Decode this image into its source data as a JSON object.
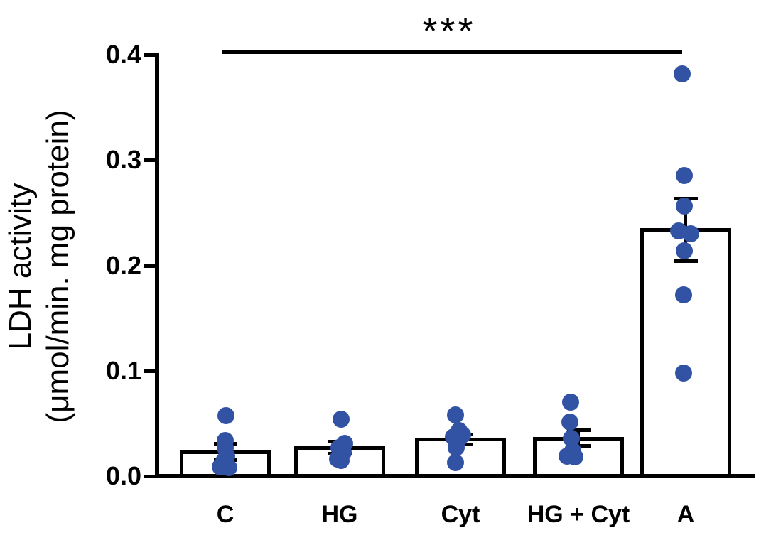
{
  "chart_data": {
    "type": "bar",
    "title": "",
    "ylabel_line1": "LDH activity",
    "ylabel_line2": "(μmol/min. mg protein)",
    "xlabel": "",
    "ylim": [
      0,
      0.4
    ],
    "yticks": [
      0.0,
      0.1,
      0.2,
      0.3,
      0.4
    ],
    "ytick_labels": [
      "0.0",
      "0.1",
      "0.2",
      "0.3",
      "0.4"
    ],
    "categories": [
      "C",
      "HG",
      "Cyt",
      "HG + Cyt",
      "A"
    ],
    "grid": false,
    "legend": "none",
    "series": [
      {
        "name": "C",
        "mean": 0.023,
        "sem": 0.008,
        "points": [
          0.057,
          0.034,
          0.027,
          0.019,
          0.014,
          0.009,
          0.008
        ]
      },
      {
        "name": "HG",
        "mean": 0.027,
        "sem": 0.006,
        "points": [
          0.054,
          0.031,
          0.027,
          0.022,
          0.016,
          0.015
        ]
      },
      {
        "name": "Cyt",
        "mean": 0.035,
        "sem": 0.005,
        "points": [
          0.058,
          0.043,
          0.039,
          0.037,
          0.033,
          0.027,
          0.013
        ]
      },
      {
        "name": "HG + Cyt",
        "mean": 0.036,
        "sem": 0.008,
        "points": [
          0.07,
          0.051,
          0.036,
          0.024,
          0.019,
          0.018
        ]
      },
      {
        "name": "A",
        "mean": 0.234,
        "sem": 0.03,
        "points": [
          0.382,
          0.285,
          0.256,
          0.233,
          0.23,
          0.214,
          0.172,
          0.098
        ]
      }
    ],
    "significance": {
      "label": "***",
      "from": "C",
      "to": "A"
    },
    "colors": {
      "dot": "#3252a3",
      "bar_fill": "#ffffff",
      "bar_border": "#000000",
      "axis": "#000000"
    }
  }
}
